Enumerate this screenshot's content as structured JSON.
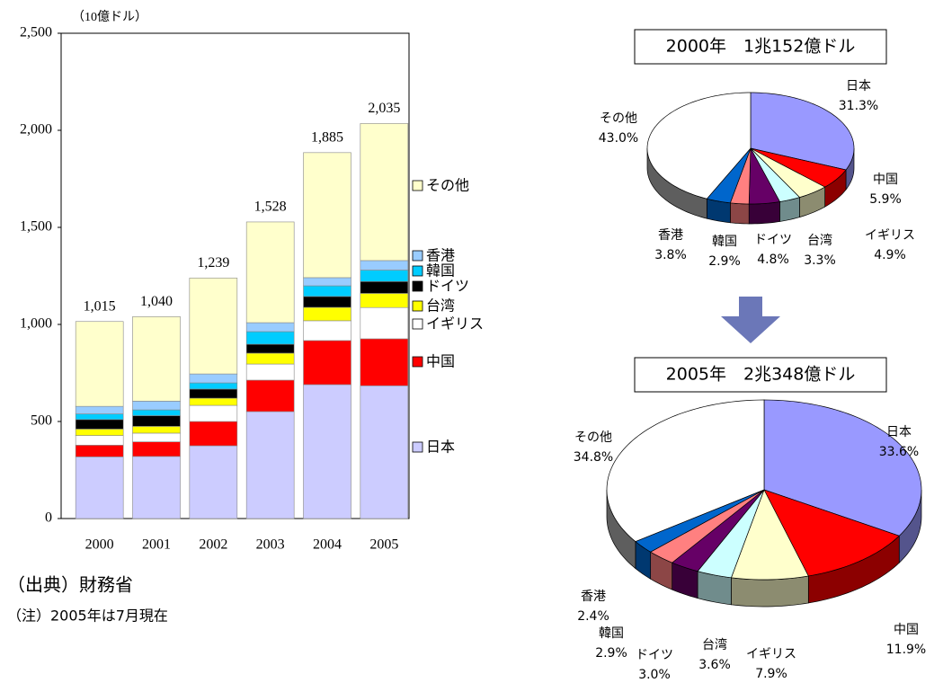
{
  "chart_data": [
    {
      "type": "stacked_bar",
      "y_label": "（10億ドル）",
      "categories": [
        "2000",
        "2001",
        "2002",
        "2003",
        "2004",
        "2005"
      ],
      "series": [
        {
          "name": "日本",
          "color": "#ccccff",
          "values": [
            318,
            320,
            375,
            551,
            690,
            684
          ]
        },
        {
          "name": "中国",
          "color": "#ff0000",
          "values": [
            60,
            75,
            125,
            162,
            227,
            242
          ]
        },
        {
          "name": "イギリス",
          "color": "#ffffff",
          "values": [
            50,
            45,
            83,
            83,
            102,
            161
          ]
        },
        {
          "name": "台湾",
          "color": "#ffff00",
          "values": [
            33,
            35,
            37,
            56,
            69,
            73
          ]
        },
        {
          "name": "ドイツ",
          "color": "#000000",
          "values": [
            49,
            55,
            47,
            46,
            56,
            61
          ]
        },
        {
          "name": "韓国",
          "color": "#00ccff",
          "values": [
            29,
            30,
            32,
            65,
            55,
            59
          ]
        },
        {
          "name": "香港",
          "color": "#99ccff",
          "values": [
            39,
            45,
            46,
            46,
            42,
            49
          ]
        },
        {
          "name": "その他",
          "color": "#ffffcc",
          "values": [
            437,
            435,
            494,
            519,
            644,
            706
          ]
        }
      ],
      "totals": [
        {
          "value": 1015,
          "label": "1,015"
        },
        {
          "value": 1040,
          "label": "1,040"
        },
        {
          "value": 1239,
          "label": "1,239"
        },
        {
          "value": 1528,
          "label": "1,528"
        },
        {
          "value": 1885,
          "label": "1,885"
        },
        {
          "value": 2035,
          "label": "2,035"
        }
      ],
      "ylim": [
        0,
        2500
      ],
      "yticks": [
        0,
        500,
        {
          "value": 1000,
          "label": "1,000"
        },
        {
          "value": 1500,
          "label": "1,500"
        },
        {
          "value": 2000,
          "label": "2,000"
        },
        {
          "value": 2500,
          "label": "2,500"
        }
      ]
    },
    {
      "type": "pie3d",
      "title": "2000年　1兆152億ドル",
      "categories": [
        "日本",
        "中国",
        "イギリス",
        "台湾",
        "ドイツ",
        "韓国",
        "香港",
        "その他"
      ],
      "values": [
        31.3,
        5.9,
        4.9,
        3.3,
        4.8,
        2.9,
        3.8,
        43.0
      ],
      "value_labels": [
        "31.3%",
        "5.9%",
        "4.9%",
        "3.3%",
        "4.8%",
        "2.9%",
        "3.8%",
        "43.0%"
      ],
      "colors": [
        "#9999ff",
        "#ff0000",
        "#ffffcc",
        "#ccffff",
        "#660066",
        "#ff8080",
        "#0066cc",
        "#ffffff"
      ]
    },
    {
      "type": "pie3d",
      "title": "2005年　2兆348億ドル",
      "categories": [
        "日本",
        "中国",
        "イギリス",
        "台湾",
        "ドイツ",
        "韓国",
        "香港",
        "その他"
      ],
      "values": [
        33.6,
        11.9,
        7.9,
        3.6,
        3.0,
        2.9,
        2.4,
        34.8
      ],
      "value_labels": [
        "33.6%",
        "11.9%",
        "7.9%",
        "3.6%",
        "3.0%",
        "2.9%",
        "2.4%",
        "34.8%"
      ],
      "colors": [
        "#9999ff",
        "#ff0000",
        "#ffffcc",
        "#ccffff",
        "#660066",
        "#ff8080",
        "#0066cc",
        "#ffffff"
      ]
    }
  ],
  "source": "（出典）財務省",
  "note": "（注）2005年は7月現在"
}
